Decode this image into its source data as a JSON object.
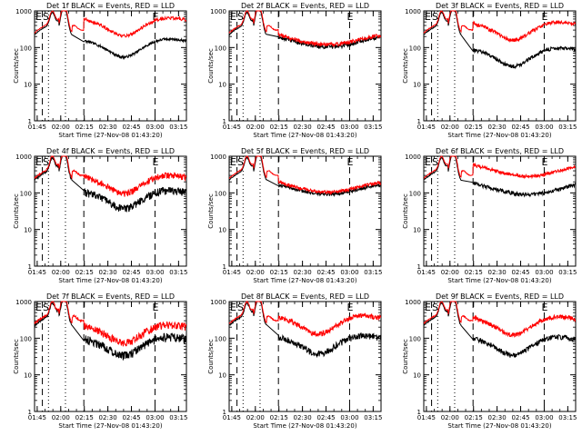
{
  "figure": {
    "x_axis_label": "Start Time (27-Nov-08 01:43:20)",
    "y_axis_label": "Counts/sec",
    "x_tick_labels": [
      "01:45",
      "02:00",
      "02:15",
      "02:30",
      "02:45",
      "03:00",
      "03:15"
    ],
    "y_tick_labels": [
      "1",
      "10",
      "100",
      "1000"
    ],
    "markers": {
      "S": "S",
      "E": "E"
    }
  },
  "chart_data": [
    {
      "type": "line",
      "title": "Det 1f BLACK = Events, RED = LLD",
      "x_range_min": [
        1.7222,
        3.3333
      ],
      "ylim": [
        1,
        1000
      ],
      "y_scale": "log",
      "series": [
        {
          "name": "BLACK = Events",
          "color": "#000000",
          "shape": "c1",
          "level": 80,
          "noise": 0.02
        },
        {
          "name": "RED = LLD",
          "color": "#ff0000",
          "level": 300,
          "noise": 0.025
        }
      ]
    },
    {
      "type": "line",
      "title": "Det 2f BLACK = Events, RED = LLD",
      "x_range_min": [
        1.7222,
        3.3333
      ],
      "ylim": [
        1,
        1000
      ],
      "y_scale": "log",
      "series": [
        {
          "name": "BLACK = Events",
          "color": "#000000",
          "shape": "c2",
          "level": 150,
          "noise": 0.035
        },
        {
          "name": "RED = LLD",
          "color": "#ff0000",
          "level": 170,
          "noise": 0.03
        }
      ]
    },
    {
      "type": "line",
      "title": "Det 3f BLACK = Events, RED = LLD",
      "x_range_min": [
        1.7222,
        3.3333
      ],
      "ylim": [
        1,
        1000
      ],
      "y_scale": "log",
      "series": [
        {
          "name": "BLACK = Events",
          "color": "#000000",
          "shape": "c1",
          "level": 45,
          "noise": 0.03
        },
        {
          "name": "RED = LLD",
          "color": "#ff0000",
          "level": 230,
          "noise": 0.03
        }
      ]
    },
    {
      "type": "line",
      "title": "Det 4f BLACK = Events, RED = LLD",
      "x_range_min": [
        1.7222,
        3.3333
      ],
      "ylim": [
        1,
        1000
      ],
      "y_scale": "log",
      "series": [
        {
          "name": "BLACK = Events",
          "color": "#000000",
          "shape": "c1",
          "level": 55,
          "noise": 0.06
        },
        {
          "name": "RED = LLD",
          "color": "#ff0000",
          "level": 140,
          "noise": 0.05
        }
      ]
    },
    {
      "type": "line",
      "title": "Det 5f BLACK = Events, RED = LLD",
      "x_range_min": [
        1.7222,
        3.3333
      ],
      "ylim": [
        1,
        1000
      ],
      "y_scale": "log",
      "series": [
        {
          "name": "BLACK = Events",
          "color": "#000000",
          "shape": "c2",
          "level": 130,
          "noise": 0.025
        },
        {
          "name": "RED = LLD",
          "color": "#ff0000",
          "level": 150,
          "noise": 0.025
        }
      ]
    },
    {
      "type": "line",
      "title": "Det 6f BLACK = Events, RED = LLD",
      "x_range_min": [
        1.7222,
        3.3333
      ],
      "ylim": [
        1,
        1000
      ],
      "y_scale": "log",
      "series": [
        {
          "name": "BLACK = Events",
          "color": "#000000",
          "shape": "c3",
          "level": 120,
          "noise": 0.03
        },
        {
          "name": "RED = LLD",
          "color": "#ff0000",
          "level": 380,
          "noise": 0.025
        }
      ]
    },
    {
      "type": "line",
      "title": "Det 7f BLACK = Events, RED = LLD",
      "x_range_min": [
        1.7222,
        3.3333
      ],
      "ylim": [
        1,
        1000
      ],
      "y_scale": "log",
      "series": [
        {
          "name": "BLACK = Events",
          "color": "#000000",
          "shape": "c1",
          "level": 50,
          "noise": 0.07
        },
        {
          "name": "RED = LLD",
          "color": "#ff0000",
          "level": 110,
          "noise": 0.06
        }
      ]
    },
    {
      "type": "line",
      "title": "Det 8f BLACK = Events, RED = LLD",
      "x_range_min": [
        1.7222,
        3.3333
      ],
      "ylim": [
        1,
        1000
      ],
      "y_scale": "log",
      "series": [
        {
          "name": "BLACK = Events",
          "color": "#000000",
          "shape": "c1",
          "level": 55,
          "noise": 0.05
        },
        {
          "name": "RED = LLD",
          "color": "#ff0000",
          "level": 190,
          "noise": 0.04
        }
      ]
    },
    {
      "type": "line",
      "title": "Det 9f BLACK = Events, RED = LLD",
      "x_range_min": [
        1.7222,
        3.3333
      ],
      "ylim": [
        1,
        1000
      ],
      "y_scale": "log",
      "series": [
        {
          "name": "BLACK = Events",
          "color": "#000000",
          "shape": "c1",
          "level": 50,
          "noise": 0.04
        },
        {
          "name": "RED = LLD",
          "color": "#ff0000",
          "level": 180,
          "noise": 0.035
        }
      ]
    }
  ]
}
